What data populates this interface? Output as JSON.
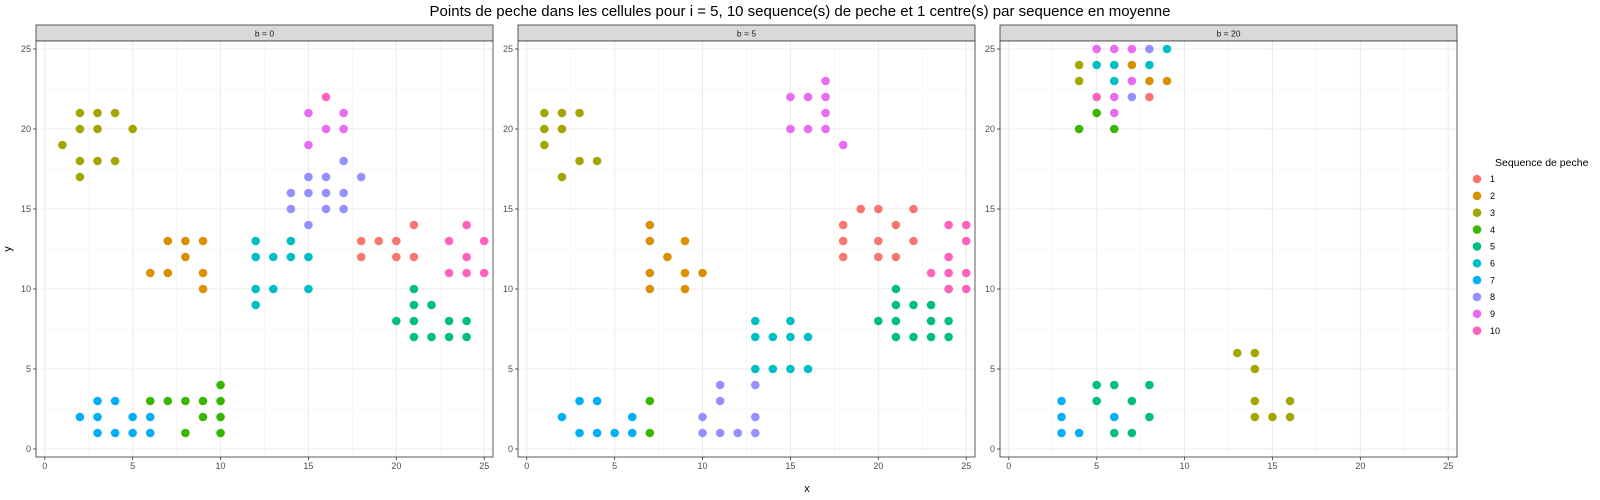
{
  "chart_data": {
    "type": "scatter",
    "title": "Points de peche dans les cellules pour i = 5, 10 sequence(s) de peche et 1 centre(s) par sequence en moyenne",
    "xlabel": "x",
    "ylabel": "y",
    "xlim": [
      -0.5,
      25.5
    ],
    "ylim": [
      -0.5,
      25.5
    ],
    "xticks": [
      0,
      5,
      10,
      15,
      20,
      25
    ],
    "yticks": [
      0,
      5,
      10,
      15,
      20,
      25
    ],
    "grid": true,
    "legend": {
      "title": "Sequence de peche",
      "position": "right",
      "entries": [
        "1",
        "2",
        "3",
        "4",
        "5",
        "6",
        "7",
        "8",
        "9",
        "10"
      ],
      "colors": [
        "#F8766D",
        "#D89000",
        "#A3A500",
        "#39B600",
        "#00BF7D",
        "#00BFC4",
        "#00B0F6",
        "#9590FF",
        "#E76BF3",
        "#FF62BC"
      ]
    },
    "panels": [
      {
        "label": "b = 0",
        "series": [
          {
            "name": "1",
            "points": [
              [
                18,
                13
              ],
              [
                19,
                13
              ],
              [
                20,
                13
              ],
              [
                18,
                12
              ],
              [
                20,
                12
              ],
              [
                21,
                12
              ],
              [
                21,
                14
              ]
            ]
          },
          {
            "name": "2",
            "points": [
              [
                7,
                13
              ],
              [
                8,
                13
              ],
              [
                9,
                13
              ],
              [
                8,
                12
              ],
              [
                6,
                11
              ],
              [
                7,
                11
              ],
              [
                9,
                11
              ],
              [
                9,
                10
              ]
            ]
          },
          {
            "name": "3",
            "points": [
              [
                1,
                19
              ],
              [
                2,
                21
              ],
              [
                3,
                21
              ],
              [
                4,
                21
              ],
              [
                2,
                20
              ],
              [
                3,
                20
              ],
              [
                5,
                20
              ],
              [
                2,
                18
              ],
              [
                3,
                18
              ],
              [
                4,
                18
              ],
              [
                2,
                17
              ]
            ]
          },
          {
            "name": "4",
            "points": [
              [
                6,
                3
              ],
              [
                7,
                3
              ],
              [
                8,
                3
              ],
              [
                9,
                3
              ],
              [
                10,
                4
              ],
              [
                10,
                3
              ],
              [
                9,
                2
              ],
              [
                10,
                2
              ],
              [
                8,
                1
              ],
              [
                10,
                1
              ]
            ]
          },
          {
            "name": "5",
            "points": [
              [
                21,
                10
              ],
              [
                21,
                9
              ],
              [
                22,
                9
              ],
              [
                20,
                8
              ],
              [
                21,
                8
              ],
              [
                23,
                8
              ],
              [
                24,
                8
              ],
              [
                21,
                7
              ],
              [
                22,
                7
              ],
              [
                23,
                7
              ],
              [
                24,
                7
              ]
            ]
          },
          {
            "name": "6",
            "points": [
              [
                12,
                13
              ],
              [
                14,
                13
              ],
              [
                12,
                12
              ],
              [
                13,
                12
              ],
              [
                14,
                12
              ],
              [
                15,
                12
              ],
              [
                12,
                10
              ],
              [
                13,
                10
              ],
              [
                15,
                10
              ],
              [
                12,
                9
              ]
            ]
          },
          {
            "name": "7",
            "points": [
              [
                3,
                3
              ],
              [
                4,
                3
              ],
              [
                2,
                2
              ],
              [
                3,
                2
              ],
              [
                5,
                2
              ],
              [
                6,
                2
              ],
              [
                3,
                1
              ],
              [
                4,
                1
              ],
              [
                5,
                1
              ],
              [
                6,
                1
              ]
            ]
          },
          {
            "name": "8",
            "points": [
              [
                17,
                18
              ],
              [
                15,
                17
              ],
              [
                16,
                17
              ],
              [
                18,
                17
              ],
              [
                14,
                16
              ],
              [
                15,
                16
              ],
              [
                16,
                16
              ],
              [
                17,
                16
              ],
              [
                14,
                15
              ],
              [
                16,
                15
              ],
              [
                17,
                15
              ],
              [
                15,
                14
              ]
            ]
          },
          {
            "name": "9",
            "points": [
              [
                15,
                21
              ],
              [
                17,
                21
              ],
              [
                16,
                20
              ],
              [
                17,
                20
              ],
              [
                15,
                19
              ]
            ]
          },
          {
            "name": "10",
            "points": [
              [
                16,
                22
              ],
              [
                24,
                14
              ],
              [
                23,
                13
              ],
              [
                25,
                13
              ],
              [
                24,
                12
              ],
              [
                23,
                11
              ],
              [
                24,
                11
              ],
              [
                25,
                11
              ]
            ]
          }
        ]
      },
      {
        "label": "b = 5",
        "series": [
          {
            "name": "1",
            "points": [
              [
                19,
                15
              ],
              [
                20,
                15
              ],
              [
                22,
                15
              ],
              [
                18,
                14
              ],
              [
                21,
                14
              ],
              [
                18,
                13
              ],
              [
                20,
                13
              ],
              [
                22,
                13
              ],
              [
                18,
                12
              ],
              [
                20,
                12
              ],
              [
                21,
                12
              ]
            ]
          },
          {
            "name": "2",
            "points": [
              [
                7,
                14
              ],
              [
                7,
                13
              ],
              [
                9,
                13
              ],
              [
                8,
                12
              ],
              [
                7,
                11
              ],
              [
                9,
                11
              ],
              [
                10,
                11
              ],
              [
                7,
                10
              ],
              [
                9,
                10
              ]
            ]
          },
          {
            "name": "3",
            "points": [
              [
                1,
                21
              ],
              [
                2,
                21
              ],
              [
                3,
                21
              ],
              [
                1,
                20
              ],
              [
                2,
                20
              ],
              [
                1,
                19
              ],
              [
                3,
                18
              ],
              [
                4,
                18
              ],
              [
                2,
                17
              ]
            ]
          },
          {
            "name": "4",
            "points": [
              [
                7,
                3
              ],
              [
                7,
                1
              ]
            ]
          },
          {
            "name": "5",
            "points": [
              [
                21,
                10
              ],
              [
                24,
                10
              ],
              [
                21,
                9
              ],
              [
                22,
                9
              ],
              [
                23,
                9
              ],
              [
                20,
                8
              ],
              [
                21,
                8
              ],
              [
                23,
                8
              ],
              [
                24,
                8
              ],
              [
                21,
                7
              ],
              [
                22,
                7
              ],
              [
                23,
                7
              ],
              [
                24,
                7
              ]
            ]
          },
          {
            "name": "6",
            "points": [
              [
                13,
                8
              ],
              [
                15,
                8
              ],
              [
                13,
                7
              ],
              [
                14,
                7
              ],
              [
                15,
                7
              ],
              [
                16,
                7
              ],
              [
                13,
                5
              ],
              [
                14,
                5
              ],
              [
                15,
                5
              ],
              [
                16,
                5
              ]
            ]
          },
          {
            "name": "7",
            "points": [
              [
                3,
                3
              ],
              [
                4,
                3
              ],
              [
                2,
                2
              ],
              [
                6,
                2
              ],
              [
                3,
                1
              ],
              [
                4,
                1
              ],
              [
                5,
                1
              ],
              [
                6,
                1
              ]
            ]
          },
          {
            "name": "8",
            "points": [
              [
                11,
                4
              ],
              [
                13,
                4
              ],
              [
                11,
                3
              ],
              [
                10,
                2
              ],
              [
                13,
                2
              ],
              [
                10,
                1
              ],
              [
                11,
                1
              ],
              [
                12,
                1
              ],
              [
                13,
                1
              ]
            ]
          },
          {
            "name": "9",
            "points": [
              [
                17,
                23
              ],
              [
                15,
                22
              ],
              [
                16,
                22
              ],
              [
                17,
                22
              ],
              [
                17,
                21
              ],
              [
                15,
                20
              ],
              [
                16,
                20
              ],
              [
                17,
                20
              ],
              [
                18,
                19
              ]
            ]
          },
          {
            "name": "10",
            "points": [
              [
                24,
                14
              ],
              [
                25,
                14
              ],
              [
                25,
                13
              ],
              [
                24,
                12
              ],
              [
                23,
                11
              ],
              [
                24,
                11
              ],
              [
                25,
                11
              ],
              [
                24,
                10
              ],
              [
                25,
                10
              ]
            ]
          }
        ]
      },
      {
        "label": "b = 20",
        "series": [
          {
            "name": "1",
            "points": [
              [
                8,
                22
              ]
            ]
          },
          {
            "name": "2",
            "points": [
              [
                7,
                24
              ],
              [
                8,
                23
              ],
              [
                9,
                23
              ]
            ]
          },
          {
            "name": "3",
            "points": [
              [
                4,
                24
              ],
              [
                4,
                23
              ],
              [
                13,
                6
              ],
              [
                14,
                6
              ],
              [
                14,
                5
              ],
              [
                14,
                3
              ],
              [
                16,
                3
              ],
              [
                14,
                2
              ],
              [
                15,
                2
              ],
              [
                16,
                2
              ]
            ]
          },
          {
            "name": "4",
            "points": [
              [
                5,
                21
              ],
              [
                4,
                20
              ],
              [
                6,
                20
              ]
            ]
          },
          {
            "name": "5",
            "points": [
              [
                5,
                4
              ],
              [
                6,
                4
              ],
              [
                8,
                4
              ],
              [
                5,
                3
              ],
              [
                7,
                3
              ],
              [
                8,
                2
              ],
              [
                6,
                1
              ],
              [
                7,
                1
              ]
            ]
          },
          {
            "name": "6",
            "points": [
              [
                5,
                24
              ],
              [
                6,
                24
              ],
              [
                8,
                24
              ],
              [
                6,
                23
              ],
              [
                9,
                25
              ]
            ]
          },
          {
            "name": "7",
            "points": [
              [
                3,
                3
              ],
              [
                3,
                2
              ],
              [
                6,
                2
              ],
              [
                3,
                1
              ],
              [
                4,
                1
              ]
            ]
          },
          {
            "name": "8",
            "points": [
              [
                8,
                25
              ],
              [
                7,
                22
              ]
            ]
          },
          {
            "name": "9",
            "points": [
              [
                5,
                25
              ],
              [
                6,
                25
              ],
              [
                7,
                25
              ],
              [
                7,
                23
              ],
              [
                6,
                22
              ],
              [
                6,
                21
              ]
            ]
          },
          {
            "name": "10",
            "points": [
              [
                5,
                22
              ]
            ]
          }
        ]
      }
    ]
  }
}
